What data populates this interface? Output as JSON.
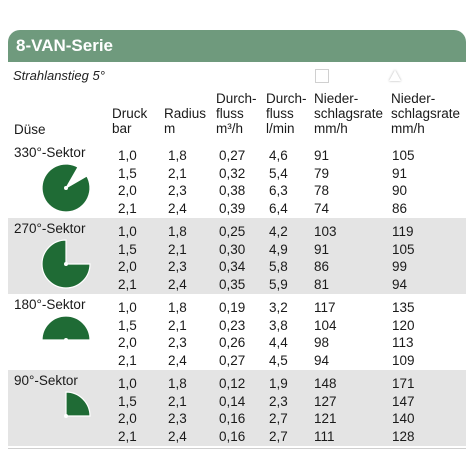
{
  "title": "8-VAN-Serie",
  "subtitle": "Strahlanstieg 5°",
  "headers": {
    "duese": "Düse",
    "druck": [
      "Druck",
      "bar"
    ],
    "radius": [
      "Radius",
      "m"
    ],
    "fluss_m3": [
      "Durch-",
      "fluss",
      "m³/h"
    ],
    "fluss_l": [
      "Durch-",
      "fluss",
      "l/min"
    ],
    "nieder_sq": [
      "Nieder-",
      "schlagsrate",
      "mm/h"
    ],
    "nieder_tri": [
      "Nieder-",
      "schlagsrate",
      "mm/h"
    ]
  },
  "sections": [
    {
      "label": "330°-Sektor",
      "icon": "330-sector-icon",
      "sweep": 330,
      "rows": [
        [
          "1,0",
          "1,8",
          "0,27",
          "4,6",
          "91",
          "105"
        ],
        [
          "1,5",
          "2,1",
          "0,32",
          "5,4",
          "79",
          "91"
        ],
        [
          "2,0",
          "2,3",
          "0,38",
          "6,3",
          "78",
          "90"
        ],
        [
          "2,1",
          "2,4",
          "0,39",
          "6,4",
          "74",
          "86"
        ]
      ]
    },
    {
      "label": "270°-Sektor",
      "icon": "270-sector-icon",
      "sweep": 270,
      "rows": [
        [
          "1,0",
          "1,8",
          "0,25",
          "4,2",
          "103",
          "119"
        ],
        [
          "1,5",
          "2,1",
          "0,30",
          "4,9",
          "91",
          "105"
        ],
        [
          "2,0",
          "2,3",
          "0,34",
          "5,8",
          "86",
          "99"
        ],
        [
          "2,1",
          "2,4",
          "0,35",
          "5,9",
          "81",
          "94"
        ]
      ]
    },
    {
      "label": "180°-Sektor",
      "icon": "180-sector-icon",
      "sweep": 180,
      "rows": [
        [
          "1,0",
          "1,8",
          "0,19",
          "3,2",
          "117",
          "135"
        ],
        [
          "1,5",
          "2,1",
          "0,23",
          "3,8",
          "104",
          "120"
        ],
        [
          "2,0",
          "2,3",
          "0,26",
          "4,4",
          "98",
          "113"
        ],
        [
          "2,1",
          "2,4",
          "0,27",
          "4,5",
          "94",
          "109"
        ]
      ]
    },
    {
      "label": "90°-Sektor",
      "icon": "90-sector-icon",
      "sweep": 90,
      "rows": [
        [
          "1,0",
          "1,8",
          "0,12",
          "1,9",
          "148",
          "171"
        ],
        [
          "1,5",
          "2,1",
          "0,14",
          "2,3",
          "127",
          "147"
        ],
        [
          "2,0",
          "2,3",
          "0,16",
          "2,7",
          "121",
          "140"
        ],
        [
          "2,1",
          "2,4",
          "0,16",
          "2,7",
          "111",
          "128"
        ]
      ]
    }
  ],
  "colors": {
    "header": "#6f9a7d",
    "band": "#e4e4e4",
    "sector": "#1f6b35"
  }
}
